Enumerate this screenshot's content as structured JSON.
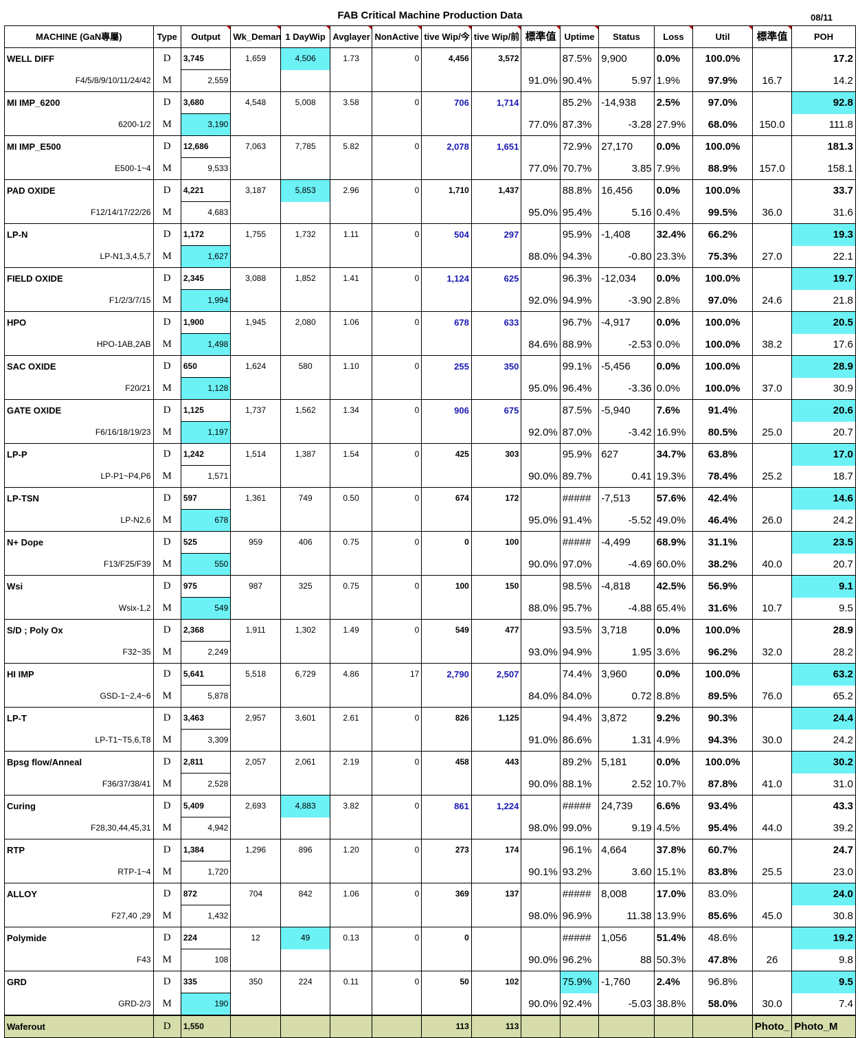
{
  "title": "FAB  Critical Machine Production Data",
  "date": "08/11",
  "headers": [
    "MACHINE (GaN專屬)",
    "Type",
    "Output",
    "Wk_Demand",
    "1 DayWip",
    "Avglayer",
    "NonActive",
    "tive Wip/今",
    "tive Wip/前",
    "標準值",
    "Uptime",
    "Status",
    "Loss",
    "Util",
    "標準值",
    "POH"
  ],
  "rows": [
    {
      "name": "WELL DIFF",
      "sub": "F4/5/8/9/10/11/24/42",
      "d": {
        "type": "D",
        "output": "3,745",
        "wk": "1,659",
        "wip": "4,506",
        "avg": "1.73",
        "na": "0",
        "now": "4,456",
        "prev": "3,572",
        "std": "",
        "up": "87.5%",
        "status": "9,900",
        "loss": "0.0%",
        "util": "100.0%",
        "std2": "",
        "poh": "17.2"
      },
      "m": {
        "type": "M",
        "output": "2,559",
        "std": "91.0%",
        "up": "90.4%",
        "status": "5.97",
        "loss": "1.9%",
        "util": "97.9%",
        "std2": "16.7",
        "poh": "14.2"
      },
      "cyan": [
        "wip"
      ],
      "blue": false,
      "pohCyan": false
    },
    {
      "name": "MI IMP_6200",
      "sub": "6200-1/2",
      "d": {
        "type": "D",
        "output": "3,680",
        "wk": "4,548",
        "wip": "5,008",
        "avg": "3.58",
        "na": "0",
        "now": "706",
        "prev": "1,714",
        "std": "",
        "up": "85.2%",
        "status": "-14,938",
        "loss": "2.5%",
        "util": "97.0%",
        "std2": "",
        "poh": "92.8"
      },
      "m": {
        "type": "M",
        "output": "3,190",
        "std": "77.0%",
        "up": "87.3%",
        "status": "-3.28",
        "loss": "27.9%",
        "util": "68.0%",
        "std2": "150.0",
        "poh": "111.8"
      },
      "cyan": [
        "mout"
      ],
      "blue": true,
      "pohCyan": true
    },
    {
      "name": "MI IMP_E500",
      "sub": "E500-1~4",
      "d": {
        "type": "D",
        "output": "12,686",
        "wk": "7,063",
        "wip": "7,785",
        "avg": "5.82",
        "na": "0",
        "now": "2,078",
        "prev": "1,651",
        "std": "",
        "up": "72.9%",
        "status": "27,170",
        "loss": "0.0%",
        "util": "100.0%",
        "std2": "",
        "poh": "181.3"
      },
      "m": {
        "type": "M",
        "output": "9,533",
        "std": "77.0%",
        "up": "70.7%",
        "status": "3.85",
        "loss": "7.9%",
        "util": "88.9%",
        "std2": "157.0",
        "poh": "158.1"
      },
      "cyan": [],
      "blue": true,
      "pohCyan": false
    },
    {
      "name": "PAD OXIDE",
      "sub": "F12/14/17/22/26",
      "d": {
        "type": "D",
        "output": "4,221",
        "wk": "3,187",
        "wip": "5,853",
        "avg": "2.96",
        "na": "0",
        "now": "1,710",
        "prev": "1,437",
        "std": "",
        "up": "88.8%",
        "status": "16,456",
        "loss": "0.0%",
        "util": "100.0%",
        "std2": "",
        "poh": "33.7"
      },
      "m": {
        "type": "M",
        "output": "4,683",
        "std": "95.0%",
        "up": "95.4%",
        "status": "5.16",
        "loss": "0.4%",
        "util": "99.5%",
        "std2": "36.0",
        "poh": "31.6"
      },
      "cyan": [
        "wip"
      ],
      "blue": false,
      "pohCyan": false
    },
    {
      "name": "LP-N",
      "sub": "LP-N1,3,4,5,7",
      "d": {
        "type": "D",
        "output": "1,172",
        "wk": "1,755",
        "wip": "1,732",
        "avg": "1.11",
        "na": "0",
        "now": "504",
        "prev": "297",
        "std": "",
        "up": "95.9%",
        "status": "-1,408",
        "loss": "32.4%",
        "util": "66.2%",
        "std2": "",
        "poh": "19.3"
      },
      "m": {
        "type": "M",
        "output": "1,627",
        "std": "88.0%",
        "up": "94.3%",
        "status": "-0.80",
        "loss": "23.3%",
        "util": "75.3%",
        "std2": "27.0",
        "poh": "22.1"
      },
      "cyan": [
        "mout"
      ],
      "blue": true,
      "pohCyan": true
    },
    {
      "name": "FIELD OXIDE",
      "sub": "F1/2/3/7/15",
      "d": {
        "type": "D",
        "output": "2,345",
        "wk": "3,088",
        "wip": "1,852",
        "avg": "1.41",
        "na": "0",
        "now": "1,124",
        "prev": "625",
        "std": "",
        "up": "96.3%",
        "status": "-12,034",
        "loss": "0.0%",
        "util": "100.0%",
        "std2": "",
        "poh": "19.7"
      },
      "m": {
        "type": "M",
        "output": "1,994",
        "std": "92.0%",
        "up": "94.9%",
        "status": "-3.90",
        "loss": "2.8%",
        "util": "97.0%",
        "std2": "24.6",
        "poh": "21.8"
      },
      "cyan": [
        "mout"
      ],
      "blue": true,
      "pohCyan": true
    },
    {
      "name": "HPO",
      "sub": "HPO-1AB,2AB",
      "d": {
        "type": "D",
        "output": "1,900",
        "wk": "1,945",
        "wip": "2,080",
        "avg": "1.06",
        "na": "0",
        "now": "678",
        "prev": "633",
        "std": "",
        "up": "96.7%",
        "status": "-4,917",
        "loss": "0.0%",
        "util": "100.0%",
        "std2": "",
        "poh": "20.5"
      },
      "m": {
        "type": "M",
        "output": "1,498",
        "std": "84.6%",
        "up": "88.9%",
        "status": "-2.53",
        "loss": "0.0%",
        "util": "100.0%",
        "std2": "38.2",
        "poh": "17.6"
      },
      "cyan": [
        "mout"
      ],
      "blue": true,
      "pohCyan": true
    },
    {
      "name": "SAC OXIDE",
      "sub": "F20/21",
      "d": {
        "type": "D",
        "output": "650",
        "wk": "1,624",
        "wip": "580",
        "avg": "1.10",
        "na": "0",
        "now": "255",
        "prev": "350",
        "std": "",
        "up": "99.1%",
        "status": "-5,456",
        "loss": "0.0%",
        "util": "100.0%",
        "std2": "",
        "poh": "28.9"
      },
      "m": {
        "type": "M",
        "output": "1,128",
        "std": "95.0%",
        "up": "96.4%",
        "status": "-3.36",
        "loss": "0.0%",
        "util": "100.0%",
        "std2": "37.0",
        "poh": "30.9"
      },
      "cyan": [
        "mout"
      ],
      "blue": true,
      "pohCyan": true
    },
    {
      "name": "GATE OXIDE",
      "sub": "F6/16/18/19/23",
      "d": {
        "type": "D",
        "output": "1,125",
        "wk": "1,737",
        "wip": "1,562",
        "avg": "1.34",
        "na": "0",
        "now": "906",
        "prev": "675",
        "std": "",
        "up": "87.5%",
        "status": "-5,940",
        "loss": "7.6%",
        "util": "91.4%",
        "std2": "",
        "poh": "20.6"
      },
      "m": {
        "type": "M",
        "output": "1,197",
        "std": "92.0%",
        "up": "87.0%",
        "status": "-3.42",
        "loss": "16.9%",
        "util": "80.5%",
        "std2": "25.0",
        "poh": "20.7"
      },
      "cyan": [
        "mout"
      ],
      "blue": true,
      "pohCyan": true
    },
    {
      "name": "LP-P",
      "sub": "LP-P1~P4,P6",
      "d": {
        "type": "D",
        "output": "1,242",
        "wk": "1,514",
        "wip": "1,387",
        "avg": "1.54",
        "na": "0",
        "now": "425",
        "prev": "303",
        "std": "",
        "up": "95.9%",
        "status": "627",
        "loss": "34.7%",
        "util": "63.8%",
        "std2": "",
        "poh": "17.0"
      },
      "m": {
        "type": "M",
        "output": "1,571",
        "std": "90.0%",
        "up": "89.7%",
        "status": "0.41",
        "loss": "19.3%",
        "util": "78.4%",
        "std2": "25.2",
        "poh": "18.7"
      },
      "cyan": [],
      "blue": false,
      "pohCyan": true
    },
    {
      "name": "LP-TSN",
      "sub": "LP-N2,6",
      "d": {
        "type": "D",
        "output": "597",
        "wk": "1,361",
        "wip": "749",
        "avg": "0.50",
        "na": "0",
        "now": "674",
        "prev": "172",
        "std": "",
        "up": "#####",
        "status": "-7,513",
        "loss": "57.6%",
        "util": "42.4%",
        "std2": "",
        "poh": "14.6"
      },
      "m": {
        "type": "M",
        "output": "678",
        "std": "95.0%",
        "up": "91.4%",
        "status": "-5.52",
        "loss": "49.0%",
        "util": "46.4%",
        "std2": "26.0",
        "poh": "24.2"
      },
      "cyan": [
        "mout"
      ],
      "blue": false,
      "pohCyan": true
    },
    {
      "name": "N+ Dope",
      "sub": "F13/F25/F39",
      "d": {
        "type": "D",
        "output": "525",
        "wk": "959",
        "wip": "406",
        "avg": "0.75",
        "na": "0",
        "now": "0",
        "prev": "100",
        "std": "",
        "up": "#####",
        "status": "-4,499",
        "loss": "68.9%",
        "util": "31.1%",
        "std2": "",
        "poh": "23.5"
      },
      "m": {
        "type": "M",
        "output": "550",
        "std": "90.0%",
        "up": "97.0%",
        "status": "-4.69",
        "loss": "60.0%",
        "util": "38.2%",
        "std2": "40.0",
        "poh": "20.7"
      },
      "cyan": [
        "mout"
      ],
      "blue": false,
      "pohCyan": true
    },
    {
      "name": "Wsi",
      "sub": "Wsix-1,2",
      "d": {
        "type": "D",
        "output": "975",
        "wk": "987",
        "wip": "325",
        "avg": "0.75",
        "na": "0",
        "now": "100",
        "prev": "150",
        "std": "",
        "up": "98.5%",
        "status": "-4,818",
        "loss": "42.5%",
        "util": "56.9%",
        "std2": "",
        "poh": "9.1"
      },
      "m": {
        "type": "M",
        "output": "549",
        "std": "88.0%",
        "up": "95.7%",
        "status": "-4.88",
        "loss": "65.4%",
        "util": "31.6%",
        "std2": "10.7",
        "poh": "9.5"
      },
      "cyan": [
        "mout"
      ],
      "blue": false,
      "pohCyan": true
    },
    {
      "name": "S/D ; Poly Ox",
      "sub": "F32~35",
      "d": {
        "type": "D",
        "output": "2,368",
        "wk": "1,911",
        "wip": "1,302",
        "avg": "1.49",
        "na": "0",
        "now": "549",
        "prev": "477",
        "std": "",
        "up": "93.5%",
        "status": "3,718",
        "loss": "0.0%",
        "util": "100.0%",
        "std2": "",
        "poh": "28.9"
      },
      "m": {
        "type": "M",
        "output": "2,249",
        "std": "93.0%",
        "up": "94.9%",
        "status": "1.95",
        "loss": "3.6%",
        "util": "96.2%",
        "std2": "32.0",
        "poh": "28.2"
      },
      "cyan": [],
      "blue": false,
      "pohCyan": false
    },
    {
      "name": "HI IMP",
      "sub": "GSD-1~2,4~6",
      "d": {
        "type": "D",
        "output": "5,641",
        "wk": "5,518",
        "wip": "6,729",
        "avg": "4.86",
        "na": "17",
        "now": "2,790",
        "prev": "2,507",
        "std": "",
        "up": "74.4%",
        "status": "3,960",
        "loss": "0.0%",
        "util": "100.0%",
        "std2": "",
        "poh": "63.2"
      },
      "m": {
        "type": "M",
        "output": "5,878",
        "std": "84.0%",
        "up": "84.0%",
        "status": "0.72",
        "loss": "8.8%",
        "util": "89.5%",
        "std2": "76.0",
        "poh": "65.2"
      },
      "cyan": [],
      "blue": true,
      "pohCyan": true
    },
    {
      "name": "LP-T",
      "sub": "LP-T1~T5,6,T8",
      "d": {
        "type": "D",
        "output": "3,463",
        "wk": "2,957",
        "wip": "3,601",
        "avg": "2.61",
        "na": "0",
        "now": "826",
        "prev": "1,125",
        "std": "",
        "up": "94.4%",
        "status": "3,872",
        "loss": "9.2%",
        "util": "90.3%",
        "std2": "",
        "poh": "24.4"
      },
      "m": {
        "type": "M",
        "output": "3,309",
        "std": "91.0%",
        "up": "86.6%",
        "status": "1.31",
        "loss": "4.9%",
        "util": "94.3%",
        "std2": "30.0",
        "poh": "24.2"
      },
      "cyan": [],
      "blue": false,
      "pohCyan": true
    },
    {
      "name": "Bpsg flow/Anneal",
      "sub": "F36/37/38/41",
      "d": {
        "type": "D",
        "output": "2,811",
        "wk": "2,057",
        "wip": "2,061",
        "avg": "2.19",
        "na": "0",
        "now": "458",
        "prev": "443",
        "std": "",
        "up": "89.2%",
        "status": "5,181",
        "loss": "0.0%",
        "util": "100.0%",
        "std2": "",
        "poh": "30.2"
      },
      "m": {
        "type": "M",
        "output": "2,528",
        "std": "90.0%",
        "up": "88.1%",
        "status": "2.52",
        "loss": "10.7%",
        "util": "87.8%",
        "std2": "41.0",
        "poh": "31.0"
      },
      "cyan": [],
      "blue": false,
      "pohCyan": true
    },
    {
      "name": "Curing",
      "sub": "F28,30,44,45,31",
      "d": {
        "type": "D",
        "output": "5,409",
        "wk": "2,693",
        "wip": "4,883",
        "avg": "3.82",
        "na": "0",
        "now": "861",
        "prev": "1,224",
        "std": "",
        "up": "#####",
        "status": "24,739",
        "loss": "6.6%",
        "util": "93.4%",
        "std2": "",
        "poh": "43.3"
      },
      "m": {
        "type": "M",
        "output": "4,942",
        "std": "98.0%",
        "up": "99.0%",
        "status": "9.19",
        "loss": "4.5%",
        "util": "95.4%",
        "std2": "44.0",
        "poh": "39.2"
      },
      "cyan": [
        "wip"
      ],
      "blue": true,
      "pohCyan": false
    },
    {
      "name": "RTP",
      "sub": "RTP-1~4",
      "d": {
        "type": "D",
        "output": "1,384",
        "wk": "1,296",
        "wip": "896",
        "avg": "1.20",
        "na": "0",
        "now": "273",
        "prev": "174",
        "std": "",
        "up": "96.1%",
        "status": "4,664",
        "loss": "37.8%",
        "util": "60.7%",
        "std2": "",
        "poh": "24.7"
      },
      "m": {
        "type": "M",
        "output": "1,720",
        "std": "90.1%",
        "up": "93.2%",
        "status": "3.60",
        "loss": "15.1%",
        "util": "83.8%",
        "std2": "25.5",
        "poh": "23.0"
      },
      "cyan": [],
      "blue": false,
      "pohCyan": false
    },
    {
      "name": "ALLOY",
      "sub": "F27,40 ,29",
      "d": {
        "type": "D",
        "output": "872",
        "wk": "704",
        "wip": "842",
        "avg": "1.06",
        "na": "0",
        "now": "369",
        "prev": "137",
        "std": "",
        "up": "#####",
        "status": "8,008",
        "loss": "17.0%",
        "util": "83.0%",
        "std2": "",
        "poh": "24.0"
      },
      "m": {
        "type": "M",
        "output": "1,432",
        "std": "98.0%",
        "up": "96.9%",
        "status": "11.38",
        "loss": "13.9%",
        "util": "85.6%",
        "std2": "45.0",
        "poh": "30.8"
      },
      "cyan": [],
      "blue": false,
      "pohCyan": true,
      "utilNormal": true
    },
    {
      "name": "Polymide",
      "sub": "F43",
      "d": {
        "type": "D",
        "output": "224",
        "wk": "12",
        "wip": "49",
        "avg": "0.13",
        "na": "0",
        "now": "0",
        "prev": "",
        "std": "",
        "up": "#####",
        "status": "1,056",
        "loss": "51.4%",
        "util": "48.6%",
        "std2": "",
        "poh": "19.2"
      },
      "m": {
        "type": "M",
        "output": "108",
        "std": "90.0%",
        "up": "96.2%",
        "status": "88",
        "loss": "50.3%",
        "util": "47.8%",
        "std2": "26",
        "poh": "9.8"
      },
      "cyan": [
        "wip"
      ],
      "blue": false,
      "pohCyan": true,
      "utilNormal": true
    },
    {
      "name": "GRD",
      "sub": "GRD-2/3",
      "d": {
        "type": "D",
        "output": "335",
        "wk": "350",
        "wip": "224",
        "avg": "0.11",
        "na": "0",
        "now": "50",
        "prev": "102",
        "std": "",
        "up": "75.9%",
        "status": "-1,760",
        "loss": "2.4%",
        "util": "96.8%",
        "std2": "",
        "poh": "9.5"
      },
      "m": {
        "type": "M",
        "output": "190",
        "std": "90.0%",
        "up": "92.4%",
        "status": "-5.03",
        "loss": "38.8%",
        "util": "58.0%",
        "std2": "30.0",
        "poh": "7.4"
      },
      "cyan": [
        "mout",
        "up"
      ],
      "blue": false,
      "pohCyan": true,
      "utilNormal": true
    }
  ],
  "footer": {
    "name": "Waferout",
    "type": "D",
    "output": "1,550",
    "now": "113",
    "prev": "113",
    "std2": "Photo_",
    "poh": "Photo_M"
  },
  "colors": {
    "cyan": "#6cf2f5",
    "footer": "#d6dcaa",
    "yellow": "#ffff99",
    "blue": "#1a1ab4"
  }
}
